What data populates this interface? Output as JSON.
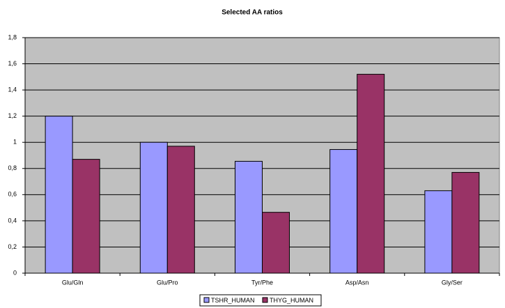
{
  "chart_data": {
    "type": "bar",
    "title": "Selected AA ratios",
    "categories": [
      "Glu/Gln",
      "Glu/Pro",
      "Tyr/Phe",
      "Asp/Asn",
      "Gly/Ser"
    ],
    "series": [
      {
        "name": "TSHR_HUMAN",
        "color": "#9999ff",
        "values": [
          1.2,
          1.0,
          0.855,
          0.945,
          0.63
        ]
      },
      {
        "name": "THYG_HUMAN",
        "color": "#993366",
        "values": [
          0.87,
          0.97,
          0.465,
          1.52,
          0.77
        ]
      }
    ],
    "ylim": [
      0,
      1.8
    ],
    "yticks": [
      0,
      {
        "value": 0.2,
        "label": "0,2"
      },
      {
        "value": 0.4,
        "label": "0,4"
      },
      {
        "value": 0.6,
        "label": "0,6"
      },
      {
        "value": 0.8,
        "label": "0,8"
      },
      1,
      {
        "value": 1.2,
        "label": "1,2"
      },
      {
        "value": 1.4,
        "label": "1,4"
      },
      {
        "value": 1.6,
        "label": "1,6"
      },
      {
        "value": 1.8,
        "label": "1,8"
      }
    ],
    "grid": true,
    "legend": "bottom"
  }
}
